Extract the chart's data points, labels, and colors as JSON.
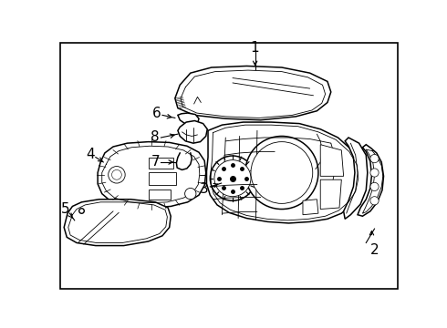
{
  "background_color": "#ffffff",
  "border_color": "#000000",
  "line_color": "#000000",
  "fig_width": 4.9,
  "fig_height": 3.6,
  "dpi": 100
}
